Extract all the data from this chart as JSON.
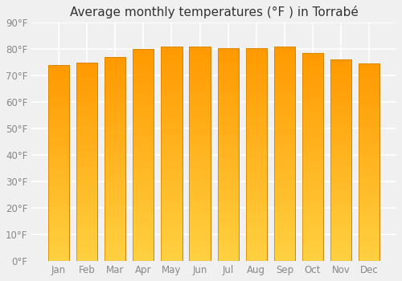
{
  "title": "Average monthly temperatures (°F ) in Torrabé",
  "months": [
    "Jan",
    "Feb",
    "Mar",
    "Apr",
    "May",
    "Jun",
    "Jul",
    "Aug",
    "Sep",
    "Oct",
    "Nov",
    "Dec"
  ],
  "values": [
    74,
    75,
    77,
    80,
    81,
    81,
    80.5,
    80.5,
    81,
    78.5,
    76,
    74.5
  ],
  "bar_color": "#FFA020",
  "bar_edge_color": "#CC8000",
  "ylim": [
    0,
    90
  ],
  "yticks": [
    0,
    10,
    20,
    30,
    40,
    50,
    60,
    70,
    80,
    90
  ],
  "ytick_labels": [
    "0°F",
    "10°F",
    "20°F",
    "30°F",
    "40°F",
    "50°F",
    "60°F",
    "70°F",
    "80°F",
    "90°F"
  ],
  "background_color": "#f0f0f0",
  "grid_color": "#ffffff",
  "title_fontsize": 11,
  "tick_fontsize": 8.5,
  "bar_bottom_color": "#FFD040",
  "bar_top_color": "#FFA020"
}
